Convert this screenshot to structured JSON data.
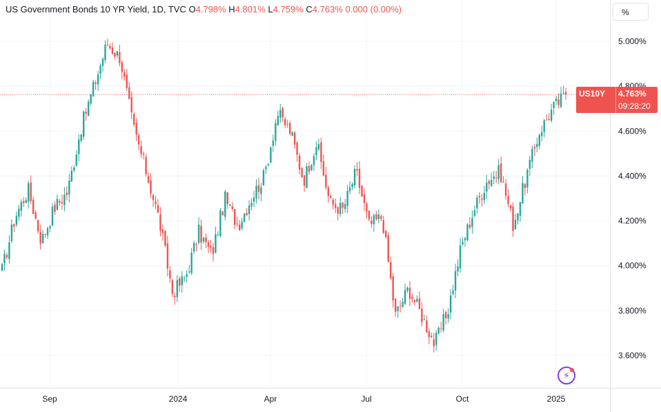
{
  "legend": {
    "title": "US Government Bonds 10 YR Yield, 1D, TVC",
    "open_label": "O",
    "open": "4.798%",
    "high_label": "H",
    "high": "4.801%",
    "low_label": "L",
    "low": "4.759%",
    "close_label": "C",
    "close": "4.763%",
    "change": "0.000 (0.00%)"
  },
  "axis_unit": "%",
  "price_tag": {
    "symbol": "US10Y",
    "last": "4.763%",
    "countdown": "09:28:20"
  },
  "colors": {
    "up": "#26a69a",
    "down": "#ef5350",
    "grid": "#f0f3fa",
    "axis_text": "#131722",
    "last_line": "#ef5350"
  },
  "chart_data": {
    "type": "candlestick",
    "y_axis": {
      "ticks": [
        "3.600%",
        "3.800%",
        "4.000%",
        "4.200%",
        "4.400%",
        "4.600%",
        "4.800%",
        "5.000%"
      ],
      "min": 3.4,
      "max": 5.1
    },
    "x_axis": {
      "ticks": [
        "Sep",
        "2024",
        "Apr",
        "Jul",
        "Oct",
        "2025"
      ]
    },
    "last_value": 4.763,
    "series": [
      {
        "date": "2023-08",
        "value": 3.98
      },
      {
        "date": "2023-08-mid",
        "value": 4.22
      },
      {
        "date": "2023-08-late",
        "value": 4.34
      },
      {
        "date": "2023-08-end",
        "value": 4.11
      },
      {
        "date": "2023-09-start",
        "value": 4.26
      },
      {
        "date": "2023-09-mid",
        "value": 4.33
      },
      {
        "date": "2023-09-late",
        "value": 4.61
      },
      {
        "date": "2023-10-start",
        "value": 4.8
      },
      {
        "date": "2023-10-mid",
        "value": 4.99
      },
      {
        "date": "2023-10-late",
        "value": 4.93
      },
      {
        "date": "2023-11-start",
        "value": 4.62
      },
      {
        "date": "2023-11-mid",
        "value": 4.42
      },
      {
        "date": "2023-12-start",
        "value": 4.2
      },
      {
        "date": "2023-12-late",
        "value": 3.88
      },
      {
        "date": "2024-01-start",
        "value": 3.95
      },
      {
        "date": "2024-01-mid",
        "value": 4.15
      },
      {
        "date": "2024-02-start",
        "value": 4.05
      },
      {
        "date": "2024-02-mid",
        "value": 4.3
      },
      {
        "date": "2024-03-start",
        "value": 4.18
      },
      {
        "date": "2024-03-mid",
        "value": 4.3
      },
      {
        "date": "2024-04-start",
        "value": 4.4
      },
      {
        "date": "2024-04-late",
        "value": 4.68
      },
      {
        "date": "2024-05-start",
        "value": 4.6
      },
      {
        "date": "2024-05-mid",
        "value": 4.38
      },
      {
        "date": "2024-05-late",
        "value": 4.55
      },
      {
        "date": "2024-06-start",
        "value": 4.28
      },
      {
        "date": "2024-06-mid",
        "value": 4.25
      },
      {
        "date": "2024-07-start",
        "value": 4.42
      },
      {
        "date": "2024-07-mid",
        "value": 4.18
      },
      {
        "date": "2024-07-late",
        "value": 4.22
      },
      {
        "date": "2024-08-start",
        "value": 3.78
      },
      {
        "date": "2024-08-mid",
        "value": 3.9
      },
      {
        "date": "2024-09-start",
        "value": 3.78
      },
      {
        "date": "2024-09-mid",
        "value": 3.65
      },
      {
        "date": "2024-10-start",
        "value": 3.8
      },
      {
        "date": "2024-10-mid",
        "value": 4.08
      },
      {
        "date": "2024-10-late",
        "value": 4.25
      },
      {
        "date": "2024-11-start",
        "value": 4.38
      },
      {
        "date": "2024-11-mid",
        "value": 4.42
      },
      {
        "date": "2024-12-start",
        "value": 4.18
      },
      {
        "date": "2024-12-mid",
        "value": 4.4
      },
      {
        "date": "2024-12-late",
        "value": 4.6
      },
      {
        "date": "2025-01-start",
        "value": 4.7
      },
      {
        "date": "2025-01-now",
        "value": 4.763
      }
    ]
  }
}
